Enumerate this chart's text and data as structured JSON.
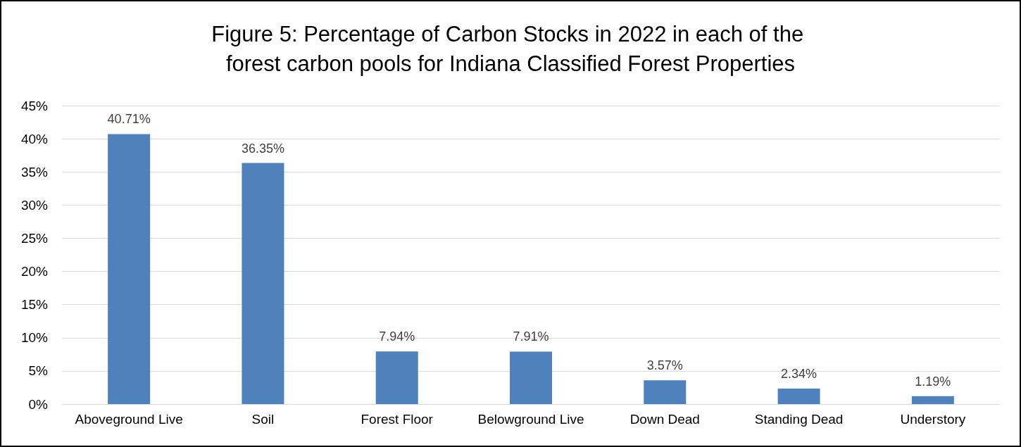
{
  "chart_data": {
    "type": "bar",
    "title": "Figure 5: Percentage of Carbon Stocks in 2022 in each of the forest carbon pools for Indiana Classified Forest Properties",
    "categories": [
      "Aboveground Live",
      "Soil",
      "Forest Floor",
      "Belowground Live",
      "Down Dead",
      "Standing Dead",
      "Understory"
    ],
    "values": [
      40.71,
      36.35,
      7.94,
      7.91,
      3.57,
      2.34,
      1.19
    ],
    "value_labels": [
      "40.71%",
      "36.35%",
      "7.94%",
      "7.91%",
      "3.57%",
      "2.34%",
      "1.19%"
    ],
    "color": "#4f81bd",
    "ylim": [
      0,
      45
    ],
    "yticks": [
      {
        "value": 0,
        "label": "0%"
      },
      {
        "value": 5,
        "label": "5%"
      },
      {
        "value": 10,
        "label": "10%"
      },
      {
        "value": 15,
        "label": "15%"
      },
      {
        "value": 20,
        "label": "20%"
      },
      {
        "value": 25,
        "label": "25%"
      },
      {
        "value": 30,
        "label": "30%"
      },
      {
        "value": 35,
        "label": "35%"
      },
      {
        "value": 40,
        "label": "40%"
      },
      {
        "value": 45,
        "label": "45%"
      }
    ],
    "grid": "y"
  }
}
